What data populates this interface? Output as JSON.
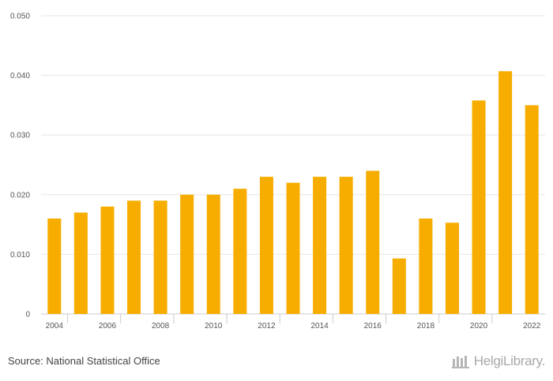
{
  "chart_data": {
    "type": "bar",
    "categories": [
      "2004",
      "2005",
      "2006",
      "2007",
      "2008",
      "2009",
      "2010",
      "2011",
      "2012",
      "2013",
      "2014",
      "2015",
      "2016",
      "2017",
      "2018",
      "2019",
      "2020",
      "2021",
      "2022"
    ],
    "values": [
      0.016,
      0.017,
      0.018,
      0.019,
      0.019,
      0.02,
      0.02,
      0.021,
      0.023,
      0.022,
      0.023,
      0.023,
      0.024,
      0.0093,
      0.016,
      0.0153,
      0.0358,
      0.0407,
      0.035
    ],
    "x_tick_labels": [
      "2004",
      "2006",
      "2008",
      "2010",
      "2012",
      "2014",
      "2016",
      "2018",
      "2020",
      "2022"
    ],
    "y_tick_labels": [
      "0",
      "0.010",
      "0.020",
      "0.030",
      "0.040",
      "0.050"
    ],
    "y_ticks": [
      0,
      0.01,
      0.02,
      0.03,
      0.04,
      0.05
    ],
    "ylim": [
      0,
      0.05
    ],
    "title": "",
    "xlabel": "",
    "ylabel": "",
    "grid": true,
    "bar_color": "#F7AD00"
  },
  "footer": {
    "source": "Source: National Statistical Office",
    "brand": "HelgiLibrary."
  },
  "colors": {
    "bar": "#F7AD00",
    "grid": "#e6e6e6",
    "brand": "#a8a8a8"
  }
}
